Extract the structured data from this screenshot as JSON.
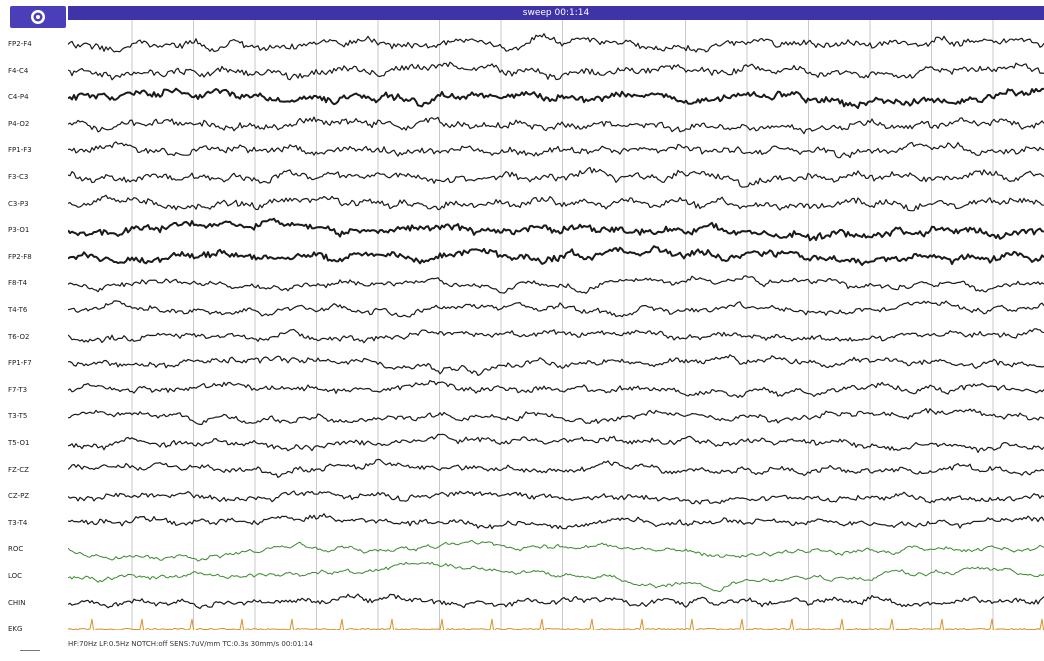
{
  "window": {
    "title": "sweep 00:1:14"
  },
  "toolbar": {
    "view_icon": "eye-icon"
  },
  "channels": [
    {
      "label": "FP2-F4",
      "type": "eeg"
    },
    {
      "label": "F4-C4",
      "type": "eeg"
    },
    {
      "label": "C4-P4",
      "type": "eeg"
    },
    {
      "label": "P4-O2",
      "type": "eeg"
    },
    {
      "label": "FP1-F3",
      "type": "eeg"
    },
    {
      "label": "F3-C3",
      "type": "eeg"
    },
    {
      "label": "C3-P3",
      "type": "eeg"
    },
    {
      "label": "P3-O1",
      "type": "eeg"
    },
    {
      "label": "FP2-F8",
      "type": "eeg"
    },
    {
      "label": "F8-T4",
      "type": "eeg"
    },
    {
      "label": "T4-T6",
      "type": "eeg"
    },
    {
      "label": "T6-O2",
      "type": "eeg"
    },
    {
      "label": "FP1-F7",
      "type": "eeg"
    },
    {
      "label": "F7-T3",
      "type": "eeg"
    },
    {
      "label": "T3-T5",
      "type": "eeg"
    },
    {
      "label": "T5-O1",
      "type": "eeg"
    },
    {
      "label": "FZ-CZ",
      "type": "eeg"
    },
    {
      "label": "CZ-PZ",
      "type": "eeg"
    },
    {
      "label": "T3-T4",
      "type": "eeg"
    },
    {
      "label": "ROC",
      "type": "eog"
    },
    {
      "label": "LOC",
      "type": "eog"
    },
    {
      "label": "CHIN",
      "type": "emg"
    },
    {
      "label": "EKG",
      "type": "ekg"
    }
  ],
  "status": {
    "text": "HF:70Hz LF:0.5Hz NOTCH:off SENS:7uV/mm TC:0.3s 30mm/s 00:01:14"
  },
  "colors": {
    "titlebar": "#3f33a8",
    "eeg_trace": "#1a1a1a",
    "eog_trace": "#3a8a2e",
    "ekg_trace": "#d9902a",
    "grid": "#c9c9c9"
  }
}
